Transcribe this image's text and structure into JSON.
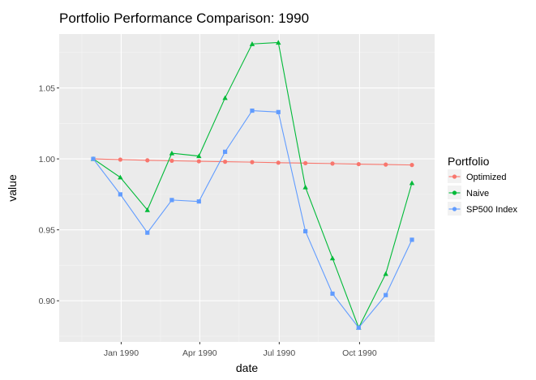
{
  "chart_data": {
    "type": "line",
    "title": "Portfolio Performance Comparison: 1990",
    "xlabel": "date",
    "ylabel": "value",
    "x": [
      "1989-11-30",
      "1989-12-31",
      "1990-01-31",
      "1990-02-28",
      "1990-03-31",
      "1990-04-30",
      "1990-05-31",
      "1990-06-30",
      "1990-07-31",
      "1990-08-31",
      "1990-09-30",
      "1990-10-31",
      "1990-11-30"
    ],
    "xlim": [
      "1989-10-22",
      "1990-12-26"
    ],
    "x_ticks": [
      {
        "date": "1990-01-01",
        "label": "Jan 1990"
      },
      {
        "date": "1990-04-01",
        "label": "Apr 1990"
      },
      {
        "date": "1990-07-01",
        "label": "Jul 1990"
      },
      {
        "date": "1990-10-01",
        "label": "Oct 1990"
      }
    ],
    "ylim": [
      0.871,
      1.088
    ],
    "y_ticks": [
      {
        "value": 0.9,
        "label": "0.90"
      },
      {
        "value": 0.95,
        "label": "0.95"
      },
      {
        "value": 1.0,
        "label": "1.00"
      },
      {
        "value": 1.05,
        "label": "1.05"
      }
    ],
    "grid": true,
    "legend_title": "Portfolio",
    "legend_position": "right",
    "series": [
      {
        "name": "Optimized",
        "color": "#F8766D",
        "marker": "circle",
        "values": [
          1.0,
          0.9995,
          0.999,
          0.9987,
          0.9983,
          0.998,
          0.9977,
          0.9973,
          0.997,
          0.9967,
          0.9963,
          0.996,
          0.9957
        ]
      },
      {
        "name": "Naive",
        "color": "#00BA38",
        "marker": "triangle",
        "values": [
          1.0,
          0.987,
          0.964,
          1.004,
          1.002,
          1.043,
          1.081,
          1.082,
          0.98,
          0.93,
          0.881,
          0.919,
          0.983
        ]
      },
      {
        "name": "SP500 Index",
        "color": "#619CFF",
        "marker": "square",
        "values": [
          1.0,
          0.975,
          0.948,
          0.971,
          0.97,
          1.005,
          1.034,
          1.033,
          0.949,
          0.905,
          0.881,
          0.904,
          0.943
        ]
      }
    ]
  }
}
